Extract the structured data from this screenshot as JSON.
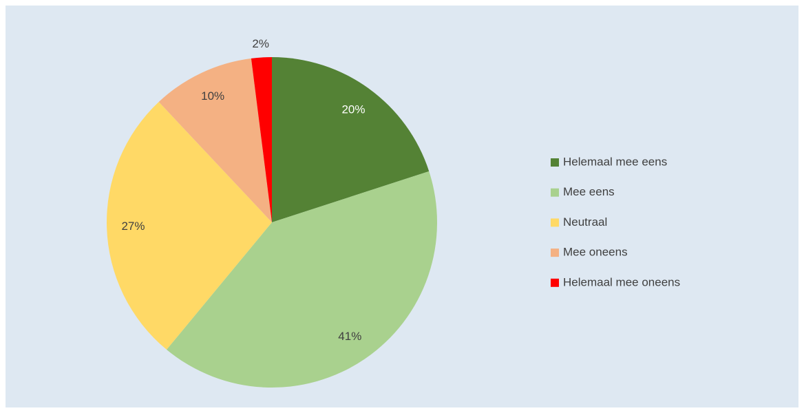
{
  "chart_data": {
    "type": "pie",
    "categories": [
      "Helemaal mee eens",
      "Mee eens",
      "Neutraal",
      "Mee oneens",
      "Helemaal mee oneens"
    ],
    "values": [
      20,
      41,
      27,
      10,
      2
    ],
    "value_labels": [
      "20%",
      "41%",
      "27%",
      "10%",
      "2%"
    ],
    "colors": [
      "#548235",
      "#a9d18e",
      "#ffd966",
      "#f4b183",
      "#ff0000"
    ],
    "legend": "right"
  }
}
